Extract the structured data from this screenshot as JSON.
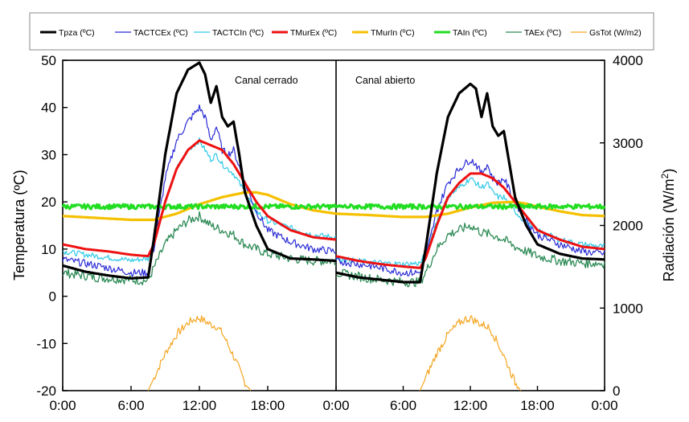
{
  "chart_data": {
    "type": "line",
    "ylabel_left": "Temperatura (ºC)",
    "ylabel_right_base": "Radiación (W/m",
    "ylabel_right_sup": "2",
    "ylabel_right_tail": ")",
    "ylim_left": [
      -20,
      50
    ],
    "ylim_right": [
      0,
      4000
    ],
    "yticks_left": [
      "50",
      "40",
      "30",
      "20",
      "10",
      "0",
      "-10",
      "-20"
    ],
    "yticks_right": [
      "4000",
      "3000",
      "2000",
      "1000",
      "0"
    ],
    "xticks": [
      "0:00",
      "6:00",
      "12:00",
      "18:00",
      "0:00",
      "6:00",
      "12:00",
      "18:00",
      "0:00"
    ],
    "grid": false,
    "legend_position": "top",
    "panels": [
      {
        "label": "Canal cerrado",
        "series": [
          {
            "name": "Tpza (ºC)",
            "color": "#000000",
            "axis": "left",
            "hours": [
              0,
              2,
              4,
              6,
              7.5,
              8,
              9,
              10,
              11,
              12,
              12.5,
              13,
              13.5,
              14,
              14.5,
              15,
              15.5,
              16,
              17,
              18,
              20,
              22,
              24
            ],
            "values": [
              6.5,
              5.2,
              4.4,
              3.8,
              4,
              12,
              30,
              43,
              48,
              49.5,
              47,
              41,
              44.5,
              38,
              36,
              37,
              30,
              22,
              15,
              10,
              8,
              7.8,
              7.5
            ]
          },
          {
            "name": "TACTCEx (ºC)",
            "color": "#2b2bd6",
            "axis": "left",
            "hours": [
              0,
              3,
              6,
              7.5,
              8,
              9,
              10,
              11,
              12,
              12.5,
              13,
              13.5,
              14,
              14.5,
              15,
              16,
              17,
              18,
              20,
              22,
              24
            ],
            "values": [
              7.8,
              6.5,
              5,
              5,
              10,
              25,
              33,
              37,
              40,
              38,
              33,
              36,
              31,
              30,
              31,
              24,
              18,
              14,
              11.5,
              10,
              9.5
            ]
          },
          {
            "name": "TACTCIn (ºC)",
            "color": "#2ec9e8",
            "axis": "left",
            "hours": [
              0,
              3,
              6,
              7.5,
              8,
              9,
              10,
              11,
              12,
              12.5,
              13,
              13.5,
              14,
              14.5,
              15,
              16,
              17,
              18,
              20,
              22,
              24
            ],
            "values": [
              9.5,
              8.5,
              7.6,
              8,
              11,
              20,
              27,
              31,
              33,
              31,
              29,
              30,
              28,
              27,
              26,
              22,
              18,
              16,
              14.5,
              13,
              12.5
            ]
          },
          {
            "name": "TMurEx (ºC)",
            "color": "#ee1111",
            "axis": "left",
            "hours": [
              0,
              2,
              4,
              6,
              7.5,
              8,
              9,
              10,
              11,
              12,
              13,
              14,
              15,
              16,
              17,
              18,
              20,
              22,
              24
            ],
            "values": [
              11,
              10,
              9.5,
              8.8,
              8.5,
              11,
              20,
              27,
              31,
              33,
              32,
              31,
              28,
              24,
              20,
              17,
              14,
              12.5,
              12
            ]
          },
          {
            "name": "TMurIn (ºC)",
            "color": "#f5c000",
            "axis": "left",
            "hours": [
              0,
              3,
              6,
              8,
              10,
              12,
              14,
              16,
              17,
              18,
              20,
              22,
              24
            ],
            "values": [
              17,
              16.6,
              16.2,
              16.2,
              17.5,
              19.5,
              21,
              22,
              22,
              21.5,
              19.5,
              18.2,
              17.5
            ]
          },
          {
            "name": "TAIn (ºC)",
            "color": "#22dd22",
            "axis": "left",
            "hours": [
              0,
              6,
              12,
              18,
              24
            ],
            "values": [
              19,
              19,
              19,
              19,
              19
            ]
          },
          {
            "name": "TAEx (ºC)",
            "color": "#2e8b57",
            "axis": "left",
            "hours": [
              0,
              3,
              6,
              7.5,
              8,
              9,
              10,
              11,
              12,
              13,
              14,
              15,
              16,
              17,
              18,
              20,
              22,
              24
            ],
            "values": [
              5,
              4,
              3.5,
              3.3,
              6,
              11,
              14,
              16,
              17,
              15,
              14,
              13,
              11,
              10,
              9,
              8,
              7.5,
              7.5
            ]
          },
          {
            "name": "GsTot (W/m2)",
            "color": "#f5a623",
            "axis": "right",
            "hours": [
              7.5,
              8,
              9,
              10,
              11,
              11.5,
              12,
              12.5,
              13,
              13.5,
              14,
              14.5,
              15,
              15.5,
              16,
              16.5
            ],
            "values": [
              0,
              150,
              450,
              680,
              820,
              860,
              880,
              840,
              800,
              780,
              700,
              560,
              420,
              260,
              100,
              0
            ]
          }
        ]
      },
      {
        "label": "Canal abierto",
        "series": [
          {
            "name": "Tpza (ºC)",
            "color": "#000000",
            "axis": "left",
            "hours": [
              0,
              2,
              4,
              6,
              7.5,
              8,
              9,
              10,
              11,
              12,
              12.5,
              13,
              13.5,
              14,
              14.5,
              15,
              15.5,
              16,
              17,
              18,
              20,
              22,
              24
            ],
            "values": [
              5,
              4,
              3.5,
              3,
              3,
              10,
              26,
              38,
              43,
              45,
              44,
              38,
              43,
              36,
              34,
              35,
              28,
              21,
              15,
              11,
              9,
              8,
              7.8
            ]
          },
          {
            "name": "TACTCEx (ºC)",
            "color": "#2b2bd6",
            "axis": "left",
            "hours": [
              0,
              3,
              6,
              7.5,
              8,
              9,
              10,
              11,
              12,
              12.5,
              13,
              13.5,
              14,
              14.5,
              15,
              16,
              17,
              18,
              20,
              22,
              24
            ],
            "values": [
              7.5,
              6.5,
              5,
              5,
              8,
              18,
              24,
              27,
              29,
              28,
              26,
              28,
              25,
              24,
              25,
              20,
              16,
              13,
              11,
              9.5,
              9
            ]
          },
          {
            "name": "TACTCIn (ºC)",
            "color": "#2ec9e8",
            "axis": "left",
            "hours": [
              0,
              3,
              6,
              7.5,
              8,
              9,
              10,
              11,
              12,
              12.5,
              13,
              13.5,
              14,
              14.5,
              15,
              16,
              17,
              18,
              20,
              22,
              24
            ],
            "values": [
              8,
              7.2,
              6.8,
              7,
              9,
              16,
              21,
              23,
              25,
              24,
              23,
              24,
              22,
              21,
              21,
              18,
              15.5,
              14,
              12,
              11,
              10.5
            ]
          },
          {
            "name": "TMurEx (ºC)",
            "color": "#ee1111",
            "axis": "left",
            "hours": [
              0,
              2,
              4,
              6,
              7.5,
              8,
              9,
              10,
              11,
              12,
              13,
              14,
              15,
              16,
              17,
              18,
              20,
              22,
              24
            ],
            "values": [
              8.5,
              7.5,
              6.8,
              6.3,
              6,
              8,
              15,
              21,
              24,
              26,
              26,
              25,
              23,
              20,
              17,
              14,
              12,
              10.5,
              10
            ]
          },
          {
            "name": "TMurIn (ºC)",
            "color": "#f5c000",
            "axis": "left",
            "hours": [
              0,
              3,
              6,
              8,
              10,
              12,
              14,
              16,
              17,
              18,
              20,
              22,
              24
            ],
            "values": [
              17.5,
              17.2,
              16.8,
              16.8,
              17.5,
              18.8,
              19.8,
              20,
              19.6,
              19,
              18,
              17.2,
              17
            ]
          },
          {
            "name": "TAIn (ºC)",
            "color": "#22dd22",
            "axis": "left",
            "hours": [
              0,
              6,
              12,
              18,
              24
            ],
            "values": [
              19,
              19,
              19,
              19,
              19
            ]
          },
          {
            "name": "TAEx (ºC)",
            "color": "#2e8b57",
            "axis": "left",
            "hours": [
              0,
              3,
              6,
              7.5,
              8,
              9,
              10,
              11,
              12,
              13,
              14,
              15,
              16,
              17,
              18,
              20,
              22,
              24
            ],
            "values": [
              5,
              3.8,
              3,
              3,
              5,
              10,
              13,
              14,
              15,
              13.5,
              13,
              12,
              10.5,
              9.5,
              8.5,
              7.5,
              7,
              7
            ]
          },
          {
            "name": "GsTot (W/m2)",
            "color": "#f5a623",
            "axis": "right",
            "hours": [
              7.5,
              8,
              9,
              10,
              11,
              11.5,
              12,
              12.5,
              13,
              13.5,
              14,
              14.5,
              15,
              15.5,
              16,
              16.5
            ],
            "values": [
              0,
              150,
              450,
              680,
              820,
              860,
              880,
              840,
              800,
              780,
              700,
              560,
              420,
              260,
              100,
              0
            ]
          }
        ]
      }
    ]
  }
}
